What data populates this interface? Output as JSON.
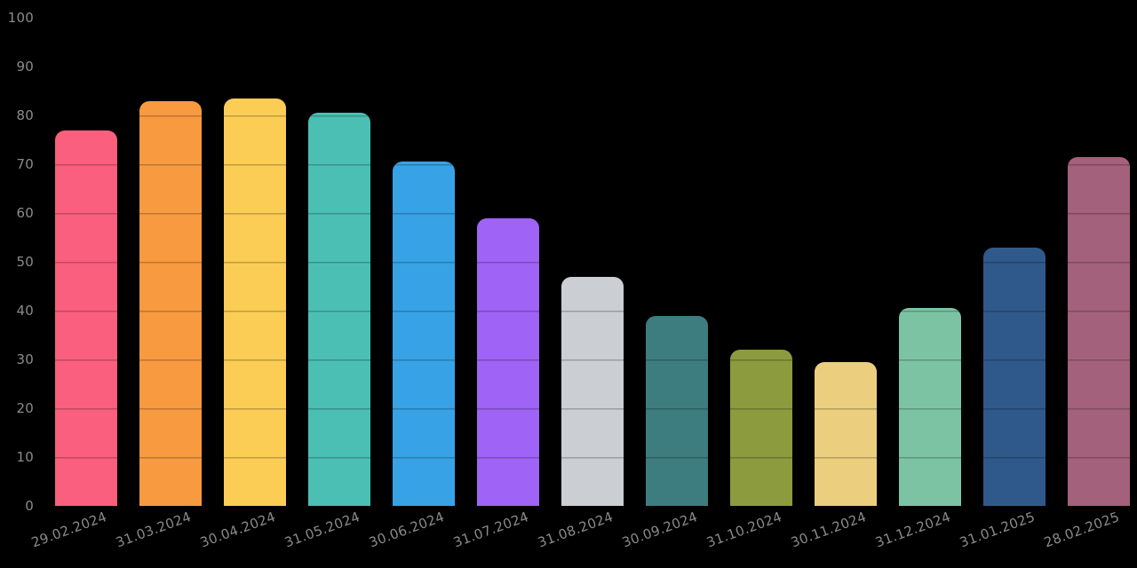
{
  "chart_data": {
    "type": "bar",
    "title": "",
    "xlabel": "",
    "ylabel": "",
    "categories": [
      "29.02.2024",
      "31.03.2024",
      "30.04.2024",
      "31.05.2024",
      "30.06.2024",
      "31.07.2024",
      "31.08.2024",
      "30.09.2024",
      "31.10.2024",
      "30.11.2024",
      "31.12.2024",
      "31.01.2025",
      "28.02.2025"
    ],
    "values": [
      77,
      83,
      83.5,
      80.5,
      70.5,
      59,
      47,
      39,
      32,
      29.5,
      40.5,
      53,
      71.5
    ],
    "bar_colors": [
      "#fa5f7e",
      "#f89a40",
      "#fbcd54",
      "#4bbfb4",
      "#37a3e6",
      "#9f63f5",
      "#cbcfd4",
      "#3d7d80",
      "#8b9b3e",
      "#ebcf7e",
      "#7cc3a4",
      "#30598b",
      "#a4617b"
    ],
    "ylim": [
      0,
      100
    ],
    "yticks": [
      0,
      10,
      20,
      30,
      40,
      50,
      60,
      70,
      80,
      90,
      100
    ],
    "grid": false,
    "legend": false,
    "segment_lines_every": 10,
    "x_tick_rotation_deg": -20,
    "tick_label_color": "#8b8b8b",
    "background_color": "#000000"
  }
}
